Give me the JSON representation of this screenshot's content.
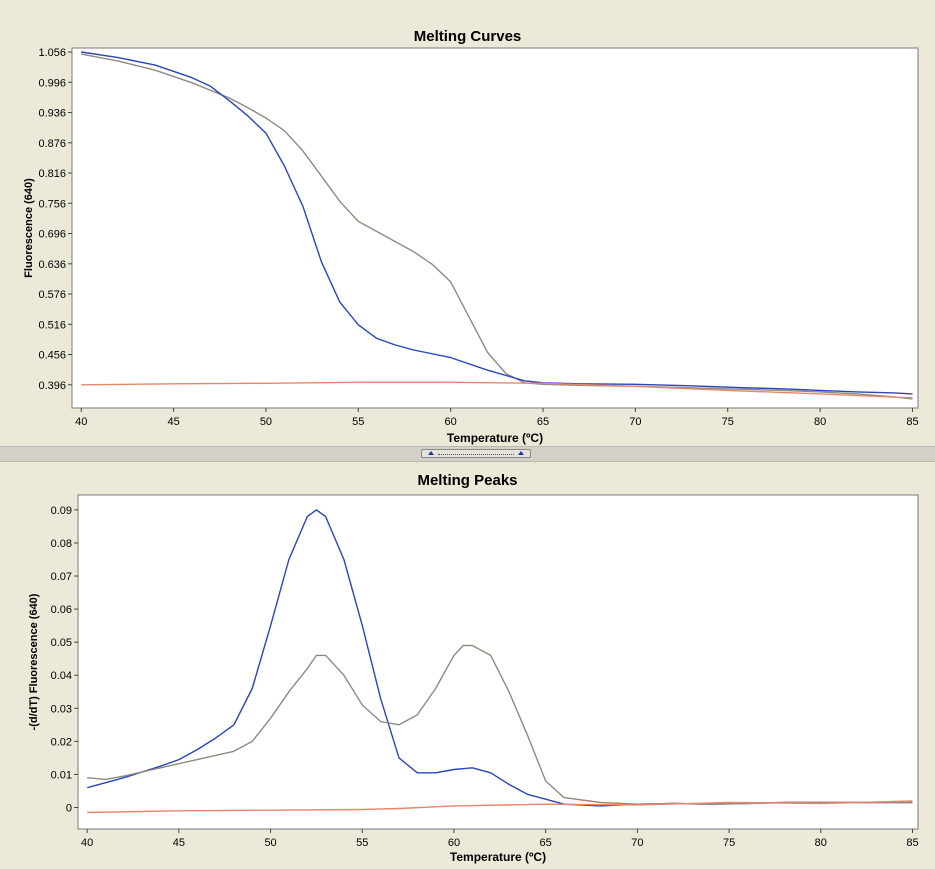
{
  "chart_data": [
    {
      "type": "line",
      "title": "Melting Curves",
      "xlabel": "Temperature (ºC)",
      "ylabel": "Fluorescence (640)",
      "xlim": [
        39.5,
        85.3
      ],
      "ylim": [
        0.35,
        1.064
      ],
      "xticks": [
        40,
        45,
        50,
        55,
        60,
        65,
        70,
        75,
        80,
        85
      ],
      "yticks": [
        1.056,
        0.996,
        0.936,
        0.876,
        0.816,
        0.756,
        0.696,
        0.636,
        0.576,
        0.516,
        0.456,
        0.396
      ],
      "ytick_labels": [
        "1.056",
        "0.996",
        "0.936",
        "0.876",
        "0.816",
        "0.756",
        "0.696",
        "0.636",
        "0.576",
        "0.516",
        "0.456",
        "0.396"
      ],
      "grid": false,
      "series": [
        {
          "color": "#8c8c80",
          "x": [
            40,
            42,
            44,
            46,
            48,
            49,
            50,
            51,
            52,
            53,
            54,
            55,
            56,
            57,
            58,
            59,
            60,
            61,
            62,
            63,
            64,
            65,
            67,
            70,
            73,
            76,
            78,
            80,
            82,
            84,
            85
          ],
          "y": [
            1.052,
            1.038,
            1.02,
            0.995,
            0.965,
            0.946,
            0.925,
            0.9,
            0.86,
            0.81,
            0.76,
            0.72,
            0.7,
            0.68,
            0.66,
            0.635,
            0.6,
            0.53,
            0.46,
            0.418,
            0.4,
            0.397,
            0.395,
            0.393,
            0.39,
            0.387,
            0.385,
            0.382,
            0.378,
            0.372,
            0.368
          ]
        },
        {
          "color": "#2b45b8",
          "x": [
            40,
            42,
            44,
            46,
            47,
            48,
            49,
            50,
            51,
            52,
            53,
            53.5,
            54,
            55,
            56,
            57,
            58,
            60,
            62,
            64,
            65,
            67,
            70,
            73,
            76,
            78,
            80,
            82,
            84,
            85
          ],
          "y": [
            1.056,
            1.045,
            1.03,
            1.005,
            0.988,
            0.96,
            0.93,
            0.895,
            0.83,
            0.75,
            0.64,
            0.6,
            0.56,
            0.515,
            0.488,
            0.475,
            0.465,
            0.45,
            0.425,
            0.404,
            0.4,
            0.398,
            0.397,
            0.394,
            0.39,
            0.388,
            0.385,
            0.382,
            0.38,
            0.378
          ]
        },
        {
          "color": "#e8866a",
          "x": [
            40,
            45,
            50,
            55,
            60,
            65,
            70,
            75,
            80,
            85
          ],
          "y": [
            0.396,
            0.398,
            0.399,
            0.401,
            0.401,
            0.399,
            0.393,
            0.385,
            0.378,
            0.37
          ]
        }
      ]
    },
    {
      "type": "line",
      "title": "Melting Peaks",
      "xlabel": "Temperature (ºC)",
      "ylabel": "-(d/dT) Fluorescence (640)",
      "xlim": [
        39.5,
        85.3
      ],
      "ylim": [
        -0.0065,
        0.0945
      ],
      "xticks": [
        40,
        45,
        50,
        55,
        60,
        65,
        70,
        75,
        80,
        85
      ],
      "yticks": [
        0.09,
        0.08,
        0.07,
        0.06,
        0.05,
        0.04,
        0.03,
        0.02,
        0.01,
        0
      ],
      "ytick_labels": [
        "0.09",
        "0.08",
        "0.07",
        "0.06",
        "0.05",
        "0.04",
        "0.03",
        "0.02",
        "0.01",
        "0"
      ],
      "grid": false,
      "series": [
        {
          "color": "#2b45b8",
          "x": [
            40,
            42,
            44,
            45,
            46,
            47,
            48,
            49,
            50,
            51,
            52,
            52.5,
            53,
            54,
            55,
            56,
            57,
            58,
            59,
            60,
            61,
            62,
            63,
            64,
            65,
            66,
            68,
            70,
            72,
            74,
            76,
            78,
            80,
            82,
            84,
            85
          ],
          "y": [
            0.006,
            0.009,
            0.0125,
            0.0145,
            0.0175,
            0.021,
            0.025,
            0.036,
            0.055,
            0.075,
            0.088,
            0.09,
            0.088,
            0.075,
            0.055,
            0.033,
            0.015,
            0.0105,
            0.0105,
            0.0115,
            0.012,
            0.0105,
            0.007,
            0.004,
            0.0025,
            0.001,
            0.0005,
            0.001,
            0.0012,
            0.001,
            0.0012,
            0.0015,
            0.0015,
            0.0015,
            0.0015,
            0.0015
          ]
        },
        {
          "color": "#8c8c80",
          "x": [
            40,
            41,
            42,
            44,
            46,
            48,
            49,
            50,
            51,
            52,
            52.5,
            53,
            54,
            55,
            56,
            57,
            58,
            59,
            60,
            60.5,
            61,
            62,
            63,
            64,
            65,
            66,
            68,
            70,
            72,
            74,
            76,
            78,
            80,
            82,
            84,
            85
          ],
          "y": [
            0.009,
            0.0085,
            0.0095,
            0.012,
            0.0145,
            0.017,
            0.02,
            0.027,
            0.035,
            0.042,
            0.046,
            0.046,
            0.04,
            0.031,
            0.026,
            0.025,
            0.028,
            0.036,
            0.046,
            0.049,
            0.049,
            0.046,
            0.035,
            0.022,
            0.008,
            0.003,
            0.0015,
            0.001,
            0.0012,
            0.001,
            0.0012,
            0.0015,
            0.0015,
            0.0015,
            0.0015,
            0.0015
          ]
        },
        {
          "color": "#e8866a",
          "x": [
            40,
            45,
            50,
            55,
            57,
            60,
            65,
            70,
            75,
            80,
            85
          ],
          "y": [
            -0.0015,
            -0.001,
            -0.0008,
            -0.0006,
            -0.0003,
            0.0005,
            0.001,
            0.0008,
            0.0015,
            0.0012,
            0.002
          ]
        }
      ]
    }
  ]
}
